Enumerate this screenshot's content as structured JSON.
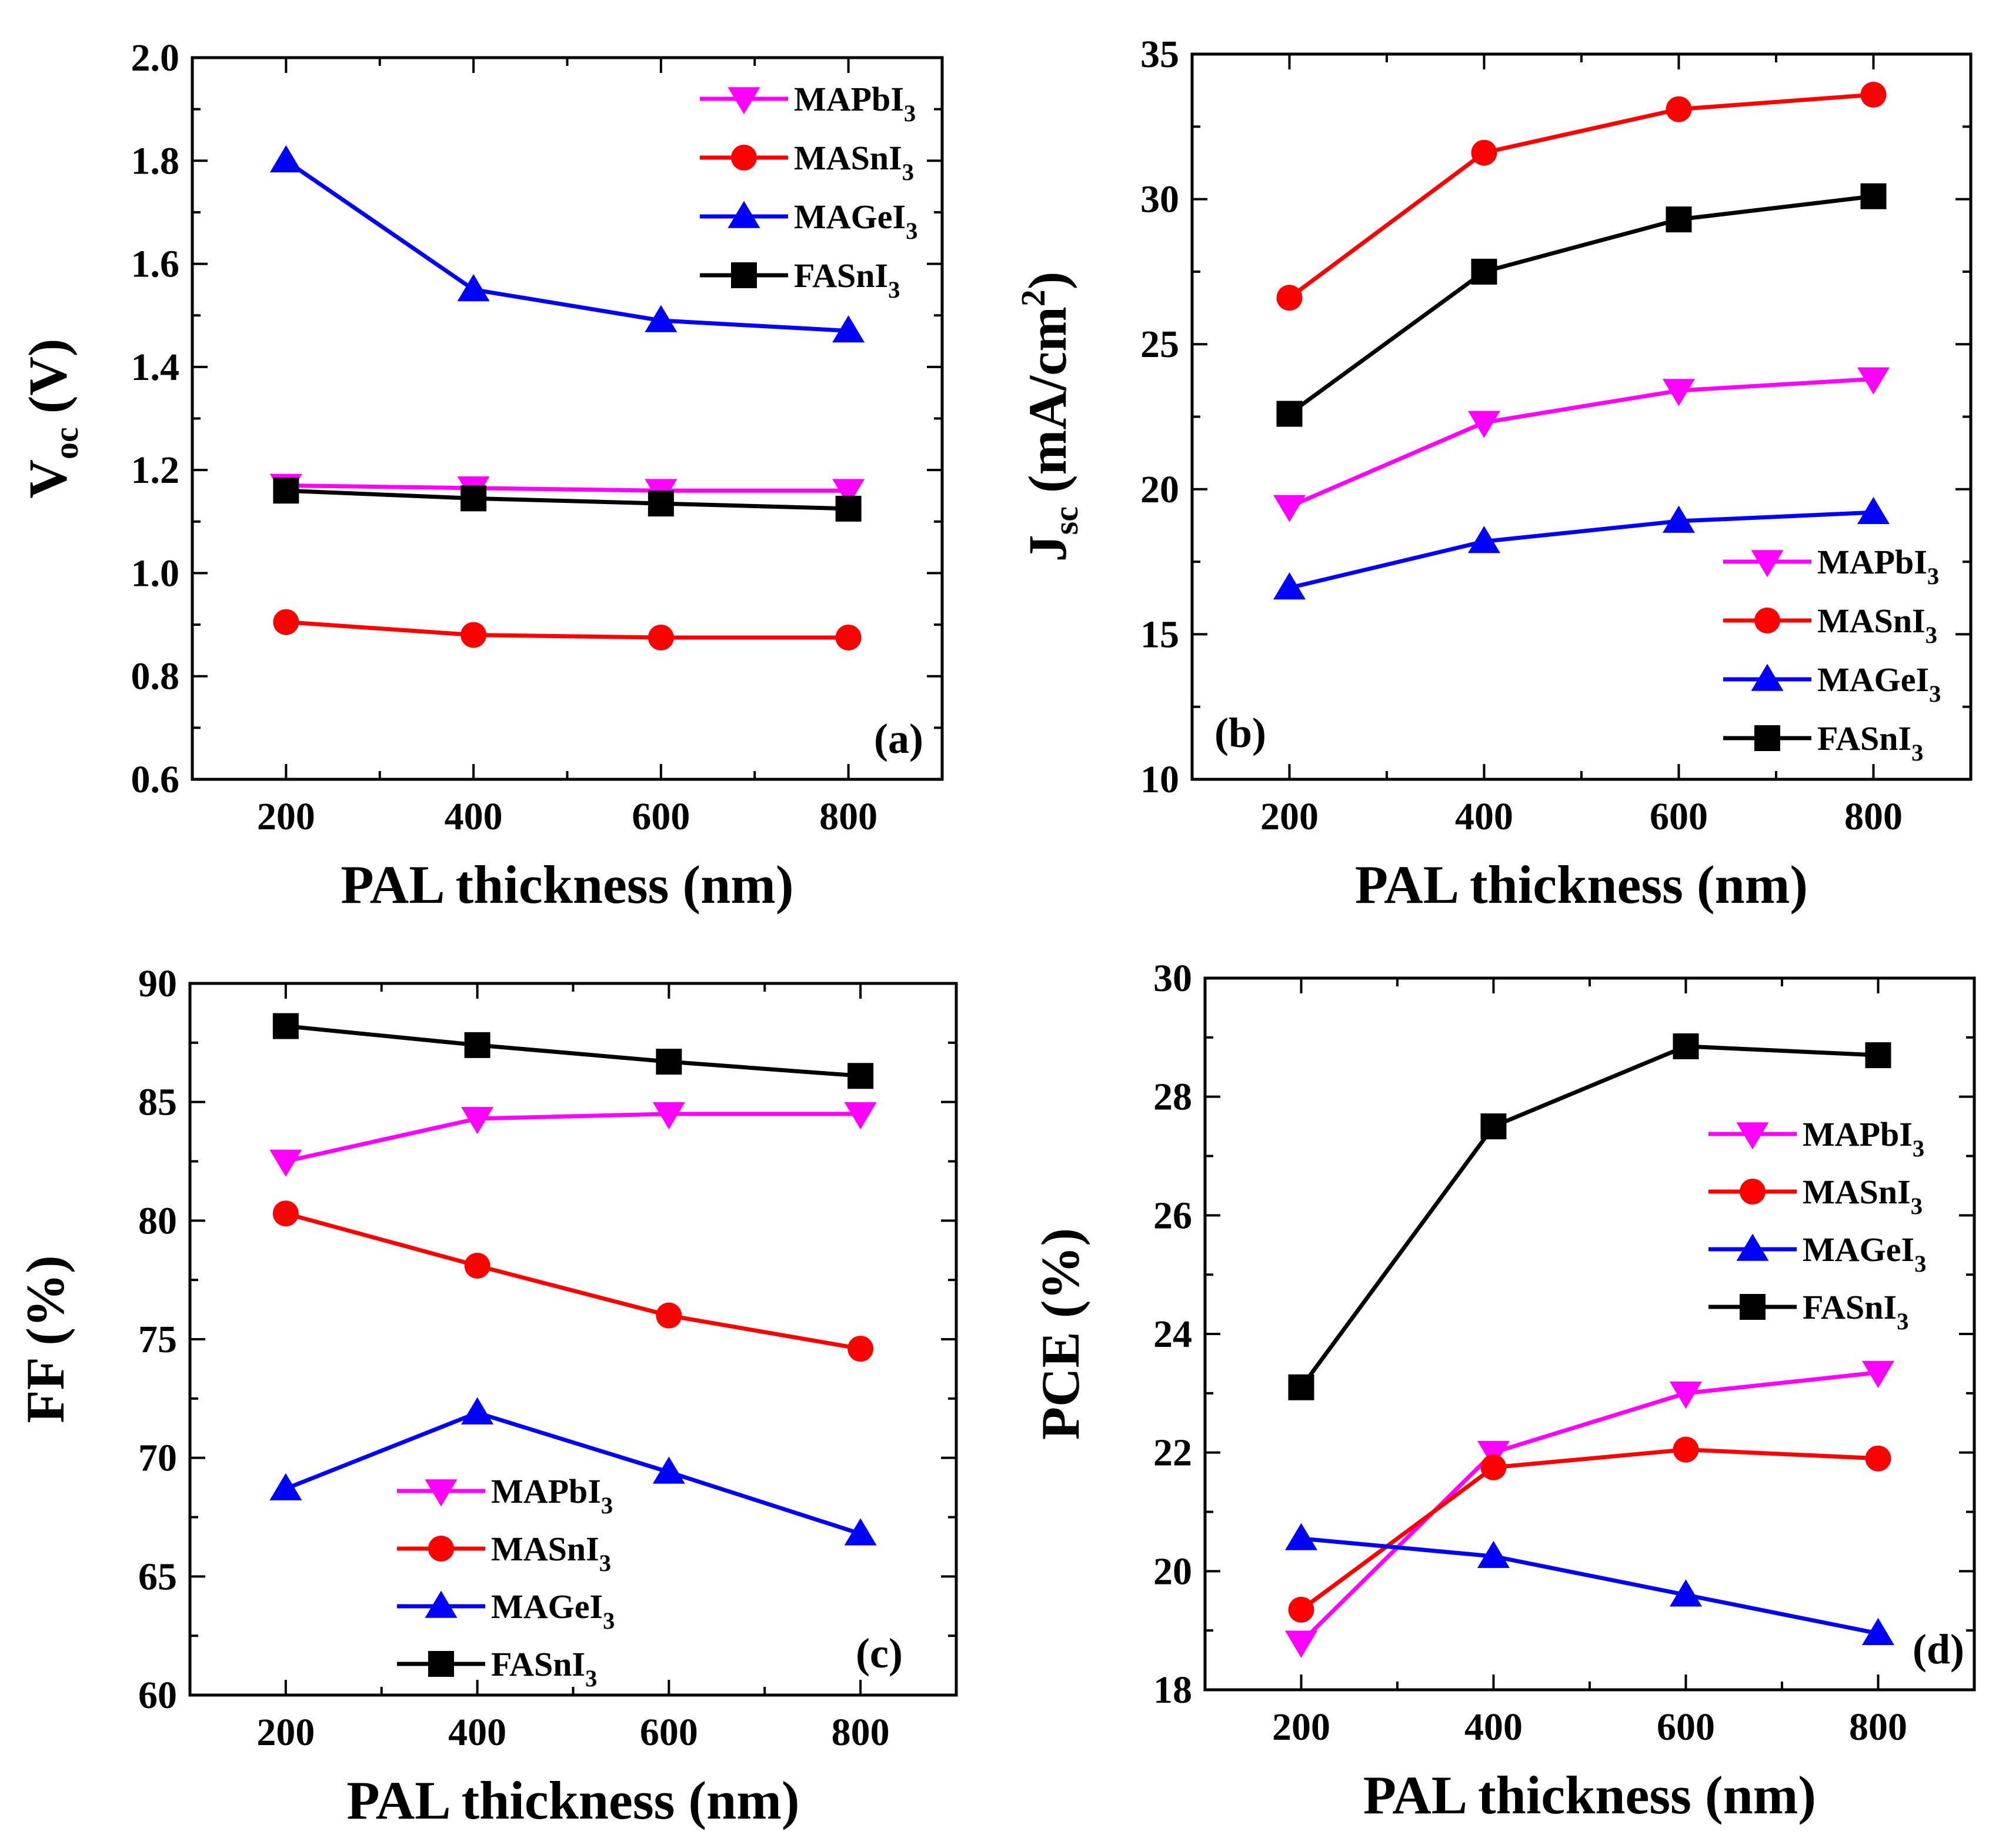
{
  "colors": {
    "MAPbI3": "#ff00ff",
    "MASnI3": "#ff0000",
    "MAGeI3": "#0000ff",
    "FASnI3": "#000000"
  },
  "chart_data": [
    {
      "type": "line",
      "panel": "(a)",
      "xlabel": "PAL thickness (nm)",
      "ylabel": {
        "main": "V",
        "sub": "oc",
        "sup": "",
        "rest": " (V)"
      },
      "x": [
        200,
        400,
        600,
        800
      ],
      "xlim": [
        100,
        900
      ],
      "xticks": [
        200,
        400,
        600,
        800
      ],
      "ylim": [
        0.6,
        2.0
      ],
      "yticks": [
        "0.6",
        "0.8",
        "1.0",
        "1.2",
        "1.4",
        "1.6",
        "1.8",
        "2.0"
      ],
      "legend": "top-right",
      "series": [
        {
          "name": "MAPbI3",
          "marker": "triangle-down",
          "values": [
            1.17,
            1.165,
            1.16,
            1.16
          ]
        },
        {
          "name": "MASnI3",
          "marker": "circle",
          "values": [
            0.905,
            0.88,
            0.875,
            0.875
          ]
        },
        {
          "name": "MAGeI3",
          "marker": "triangle-up",
          "values": [
            1.8,
            1.55,
            1.49,
            1.47
          ]
        },
        {
          "name": "FASnI3",
          "marker": "square",
          "values": [
            1.16,
            1.145,
            1.135,
            1.125
          ]
        }
      ]
    },
    {
      "type": "line",
      "panel": "(b)",
      "xlabel": "PAL thickness (nm)",
      "ylabel": {
        "main": "J",
        "sub": "sc",
        "sup": "2",
        "rest": " (mA/cm",
        "end": ")"
      },
      "x": [
        200,
        400,
        600,
        800
      ],
      "xlim": [
        100,
        900
      ],
      "xticks": [
        200,
        400,
        600,
        800
      ],
      "ylim": [
        10,
        35
      ],
      "yticks": [
        "10",
        "15",
        "20",
        "25",
        "30",
        "35"
      ],
      "legend": "bottom-right",
      "series": [
        {
          "name": "MAPbI3",
          "marker": "triangle-down",
          "values": [
            19.4,
            22.3,
            23.4,
            23.8
          ]
        },
        {
          "name": "MASnI3",
          "marker": "circle",
          "values": [
            26.6,
            31.6,
            33.1,
            33.6
          ]
        },
        {
          "name": "MAGeI3",
          "marker": "triangle-up",
          "values": [
            16.6,
            18.2,
            18.9,
            19.2
          ]
        },
        {
          "name": "FASnI3",
          "marker": "square",
          "values": [
            22.6,
            27.5,
            29.3,
            30.1
          ]
        }
      ]
    },
    {
      "type": "line",
      "panel": "(c)",
      "xlabel": "PAL thickness (nm)",
      "ylabel": {
        "main": "FF (%)",
        "sub": "",
        "sup": "",
        "rest": ""
      },
      "x": [
        200,
        400,
        600,
        800
      ],
      "xlim": [
        100,
        900
      ],
      "xticks": [
        200,
        400,
        600,
        800
      ],
      "ylim": [
        60,
        90
      ],
      "yticks": [
        "60",
        "65",
        "70",
        "75",
        "80",
        "85",
        "90"
      ],
      "legend": "bottom-left",
      "series": [
        {
          "name": "MAPbI3",
          "marker": "triangle-down",
          "values": [
            82.5,
            84.3,
            84.5,
            84.5
          ]
        },
        {
          "name": "MASnI3",
          "marker": "circle",
          "values": [
            80.3,
            78.1,
            76.0,
            74.6
          ]
        },
        {
          "name": "MAGeI3",
          "marker": "triangle-up",
          "values": [
            68.7,
            71.9,
            69.4,
            66.8
          ]
        },
        {
          "name": "FASnI3",
          "marker": "square",
          "values": [
            88.2,
            87.4,
            86.7,
            86.1
          ]
        }
      ]
    },
    {
      "type": "line",
      "panel": "(d)",
      "xlabel": "PAL thickness (nm)",
      "ylabel": {
        "main": "PCE (%)",
        "sub": "",
        "sup": "",
        "rest": ""
      },
      "x": [
        200,
        400,
        600,
        800
      ],
      "xlim": [
        100,
        900
      ],
      "xticks": [
        200,
        400,
        600,
        800
      ],
      "ylim": [
        18,
        30
      ],
      "yticks": [
        "18",
        "20",
        "22",
        "24",
        "26",
        "28",
        "30"
      ],
      "legend": "upper-right",
      "series": [
        {
          "name": "MAPbI3",
          "marker": "triangle-down",
          "values": [
            18.8,
            22.0,
            23.0,
            23.35
          ]
        },
        {
          "name": "MASnI3",
          "marker": "circle",
          "values": [
            19.35,
            21.75,
            22.05,
            21.9
          ]
        },
        {
          "name": "MAGeI3",
          "marker": "triangle-up",
          "values": [
            20.55,
            20.25,
            19.6,
            18.95
          ]
        },
        {
          "name": "FASnI3",
          "marker": "square",
          "values": [
            23.1,
            27.5,
            28.85,
            28.7
          ]
        }
      ]
    }
  ]
}
